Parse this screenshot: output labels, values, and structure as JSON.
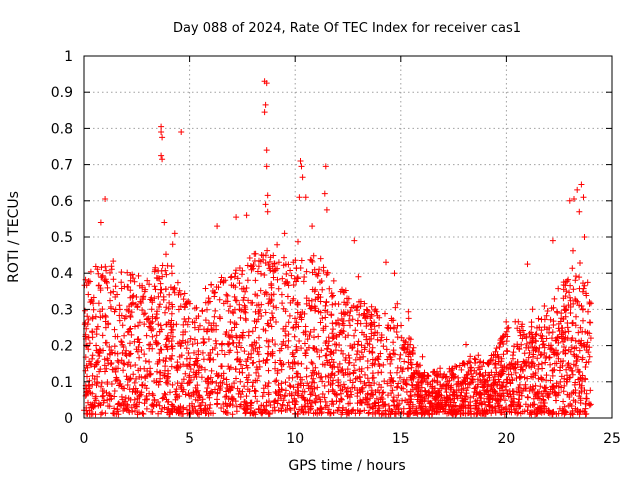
{
  "chart_data": {
    "type": "scatter",
    "title": "Day 088 of 2024, Rate Of TEC Index for receiver cas1",
    "xlabel": "GPS time / hours",
    "ylabel": "ROTI / TECUs",
    "xlim": [
      0,
      25
    ],
    "ylim": [
      0,
      1
    ],
    "x_ticks": [
      "0",
      "5",
      "10",
      "15",
      "20",
      "25"
    ],
    "y_ticks": [
      "0",
      "0.1",
      "0.2",
      "0.3",
      "0.4",
      "0.5",
      "0.6",
      "0.7",
      "0.8",
      "0.9",
      "1"
    ],
    "grid": true,
    "marker": "+",
    "color": "#ff0000",
    "envelope": {
      "x": [
        0.0,
        0.5,
        1.0,
        1.5,
        2.0,
        2.5,
        3.0,
        3.5,
        4.0,
        4.5,
        5.0,
        5.5,
        6.0,
        6.5,
        7.0,
        7.5,
        8.0,
        8.5,
        9.0,
        9.5,
        10.0,
        10.5,
        11.0,
        11.5,
        12.0,
        12.5,
        13.0,
        13.5,
        14.0,
        14.5,
        15.0,
        15.5,
        16.0,
        16.5,
        17.0,
        17.5,
        18.0,
        18.5,
        19.0,
        19.5,
        20.0,
        20.5,
        21.0,
        21.5,
        22.0,
        22.5,
        23.0,
        23.5,
        24.0
      ],
      "typical_max": [
        0.38,
        0.42,
        0.4,
        0.42,
        0.4,
        0.4,
        0.38,
        0.42,
        0.42,
        0.36,
        0.32,
        0.3,
        0.36,
        0.38,
        0.4,
        0.42,
        0.45,
        0.45,
        0.46,
        0.42,
        0.44,
        0.42,
        0.44,
        0.4,
        0.36,
        0.34,
        0.32,
        0.3,
        0.3,
        0.28,
        0.26,
        0.22,
        0.12,
        0.12,
        0.12,
        0.13,
        0.15,
        0.17,
        0.14,
        0.18,
        0.24,
        0.26,
        0.24,
        0.28,
        0.3,
        0.36,
        0.38,
        0.42,
        0.36
      ]
    },
    "outliers": [
      {
        "x": 1.0,
        "y": 0.605
      },
      {
        "x": 0.8,
        "y": 0.54
      },
      {
        "x": 3.65,
        "y": 0.805
      },
      {
        "x": 3.65,
        "y": 0.79
      },
      {
        "x": 3.7,
        "y": 0.775
      },
      {
        "x": 3.65,
        "y": 0.725
      },
      {
        "x": 3.7,
        "y": 0.715
      },
      {
        "x": 4.6,
        "y": 0.79
      },
      {
        "x": 3.8,
        "y": 0.54
      },
      {
        "x": 4.3,
        "y": 0.51
      },
      {
        "x": 6.3,
        "y": 0.53
      },
      {
        "x": 7.2,
        "y": 0.555
      },
      {
        "x": 7.7,
        "y": 0.56
      },
      {
        "x": 8.55,
        "y": 0.93
      },
      {
        "x": 8.65,
        "y": 0.925
      },
      {
        "x": 8.6,
        "y": 0.865
      },
      {
        "x": 8.55,
        "y": 0.845
      },
      {
        "x": 8.65,
        "y": 0.74
      },
      {
        "x": 8.65,
        "y": 0.695
      },
      {
        "x": 8.7,
        "y": 0.615
      },
      {
        "x": 8.6,
        "y": 0.59
      },
      {
        "x": 8.7,
        "y": 0.57
      },
      {
        "x": 10.25,
        "y": 0.71
      },
      {
        "x": 10.3,
        "y": 0.695
      },
      {
        "x": 10.35,
        "y": 0.665
      },
      {
        "x": 11.45,
        "y": 0.695
      },
      {
        "x": 10.2,
        "y": 0.61
      },
      {
        "x": 10.5,
        "y": 0.61
      },
      {
        "x": 11.4,
        "y": 0.62
      },
      {
        "x": 11.5,
        "y": 0.575
      },
      {
        "x": 9.5,
        "y": 0.51
      },
      {
        "x": 10.8,
        "y": 0.53
      },
      {
        "x": 12.8,
        "y": 0.49
      },
      {
        "x": 14.3,
        "y": 0.43
      },
      {
        "x": 14.7,
        "y": 0.4
      },
      {
        "x": 21.0,
        "y": 0.425
      },
      {
        "x": 23.0,
        "y": 0.6
      },
      {
        "x": 23.2,
        "y": 0.605
      },
      {
        "x": 23.35,
        "y": 0.63
      },
      {
        "x": 23.55,
        "y": 0.645
      },
      {
        "x": 23.45,
        "y": 0.57
      },
      {
        "x": 23.65,
        "y": 0.61
      },
      {
        "x": 22.2,
        "y": 0.49
      },
      {
        "x": 23.7,
        "y": 0.5
      },
      {
        "x": 4.2,
        "y": 0.48
      }
    ]
  }
}
